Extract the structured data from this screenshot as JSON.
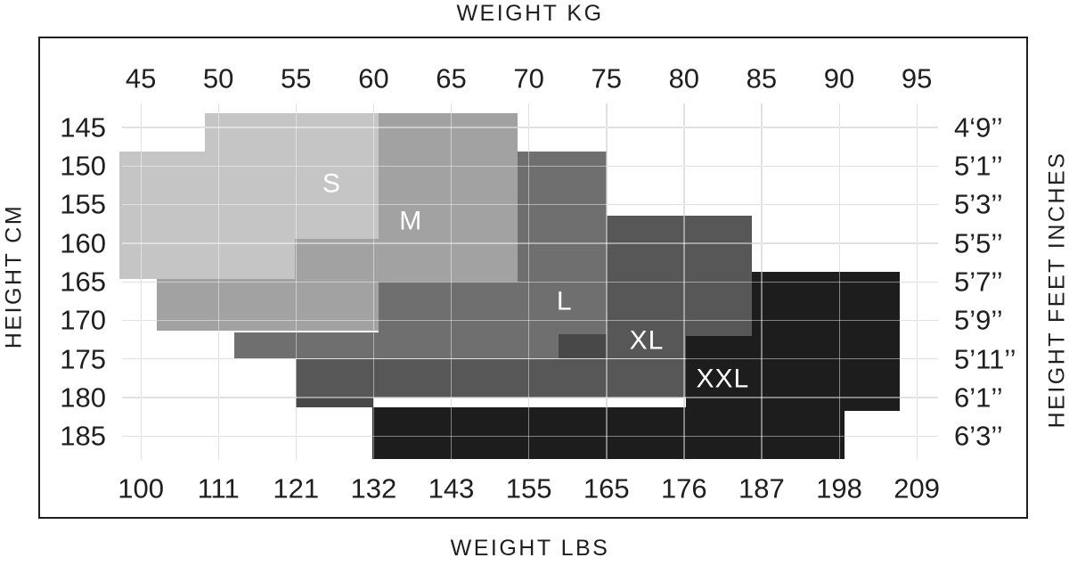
{
  "page": {
    "background": "#ffffff"
  },
  "chart_data": {
    "type": "area",
    "subtype": "stepped-size-regions",
    "title_top": "WEIGHT KG",
    "title_bottom": "WEIGHT LBS",
    "axis_left_label": "HEIGHT CM",
    "axis_right_label": "HEIGHT FEET INCHES",
    "grid": true,
    "x_range_kg": [
      43.79,
      96.37
    ],
    "y_range_cm": [
      141.88,
      188.12
    ],
    "x_axis_top": {
      "unit": "kg",
      "ticks": [
        45,
        50,
        55,
        60,
        65,
        70,
        75,
        80,
        85,
        90,
        95
      ]
    },
    "x_axis_bottom": {
      "unit": "lbs",
      "tick_labels": [
        "100",
        "111",
        "121",
        "132",
        "143",
        "155",
        "165",
        "176",
        "187",
        "198",
        "209"
      ]
    },
    "y_axis_left": {
      "unit": "cm",
      "ticks": [
        145,
        150,
        155,
        160,
        165,
        170,
        175,
        180,
        185
      ]
    },
    "y_axis_right": {
      "unit": "feet-inches",
      "tick_labels": [
        "4‘9’’",
        "5’1’’",
        "5’3’’",
        "5’5’’",
        "5’7’’",
        "5’9’’",
        "5’11’’",
        "6’1’’",
        "6’3’’"
      ]
    },
    "colors": {
      "grid_base": "#c9c9c9",
      "grid_overlay": "rgba(255,255,255,0.45)",
      "text": "#1f1f1f",
      "region_label_text": "#ffffff"
    },
    "regions": [
      {
        "name": "S",
        "label": "S",
        "color": "#c5c5c5",
        "label_kg": 57.3,
        "label_cm": 152.5,
        "rects": [
          {
            "kg": [
              49.1,
              60.3
            ],
            "cm": [
              143.1,
              148.1
            ]
          },
          {
            "kg": [
              43.6,
              60.3
            ],
            "cm": [
              148.1,
              159.5
            ]
          },
          {
            "kg": [
              43.6,
              54.9
            ],
            "cm": [
              159.5,
              164.7
            ]
          }
        ]
      },
      {
        "name": "M",
        "label": "M",
        "color": "#a2a2a2",
        "label_kg": 62.4,
        "label_cm": 157.4,
        "rects": [
          {
            "kg": [
              60.3,
              69.3
            ],
            "cm": [
              143.1,
              165.0
            ]
          },
          {
            "kg": [
              54.9,
              60.3
            ],
            "cm": [
              159.5,
              164.7
            ]
          },
          {
            "kg": [
              46.0,
              60.3
            ],
            "cm": [
              164.7,
              171.4
            ]
          }
        ]
      },
      {
        "name": "L",
        "label": "L",
        "color": "#6f6f6f",
        "label_kg": 72.3,
        "label_cm": 167.8,
        "rects": [
          {
            "kg": [
              69.3,
              75.0
            ],
            "cm": [
              148.1,
              165.0
            ]
          },
          {
            "kg": [
              60.3,
              75.0
            ],
            "cm": [
              165.0,
              171.6
            ]
          },
          {
            "kg": [
              51.0,
              75.0
            ],
            "cm": [
              171.6,
              175.0
            ]
          }
        ]
      },
      {
        "name": "XL",
        "label": "XL",
        "color": "#575757",
        "label_kg": 77.6,
        "label_cm": 172.9,
        "rects": [
          {
            "kg": [
              75.0,
              84.35
            ],
            "cm": [
              156.4,
              172.0
            ]
          },
          {
            "kg": [
              75.0,
              80.15
            ],
            "cm": [
              172.0,
              175.0
            ]
          },
          {
            "kg": [
              71.9,
              75.0
            ],
            "cm": [
              171.8,
              175.0
            ],
            "color": "#484848"
          },
          {
            "kg": [
              55.0,
              80.15
            ],
            "cm": [
              175.0,
              180.0
            ]
          },
          {
            "kg": [
              55.0,
              60.0
            ],
            "cm": [
              180.0,
              181.3
            ],
            "color": "#484848"
          }
        ]
      },
      {
        "name": "XXL",
        "label": "XXL",
        "color": "#1d1d1d",
        "label_kg": 82.5,
        "label_cm": 177.8,
        "rects": [
          {
            "kg": [
              84.4,
              93.9
            ],
            "cm": [
              163.7,
              172.0
            ]
          },
          {
            "kg": [
              80.15,
              93.9
            ],
            "cm": [
              172.0,
              181.8
            ]
          },
          {
            "kg": [
              59.9,
              90.35
            ],
            "cm": [
              181.3,
              188.0
            ]
          }
        ]
      }
    ]
  }
}
